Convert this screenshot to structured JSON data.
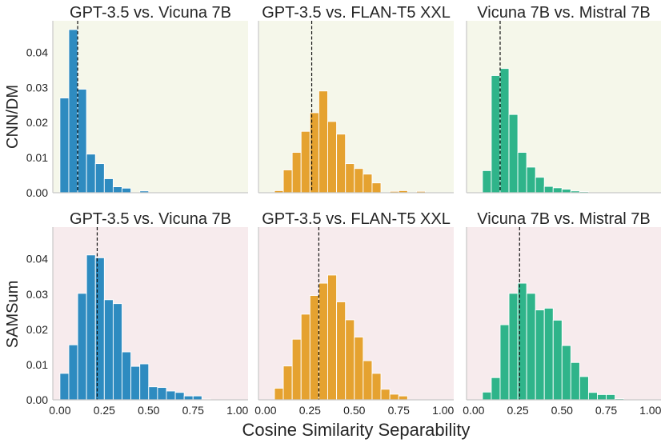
{
  "figure": {
    "xlabel": "Cosine Similarity Separability",
    "row_labels": [
      "CNN/DM",
      "SAMSum"
    ],
    "row_backgrounds": [
      "#f5f7ea",
      "#f7ebed"
    ],
    "xticks": [
      0.0,
      0.25,
      0.5,
      0.75,
      1.0
    ],
    "xtick_labels": [
      "0.00",
      "0.25",
      "0.50",
      "0.75",
      "1.00"
    ],
    "xlim": [
      -0.04,
      1.06
    ],
    "yticks": [
      0.0,
      0.01,
      0.02,
      0.03,
      0.04
    ],
    "ytick_labels": [
      "0.00",
      "0.01",
      "0.02",
      "0.03",
      "0.04"
    ],
    "ylim": [
      0,
      0.049
    ],
    "bin_width": 0.05,
    "bin_start": 0.0,
    "series_colors": {
      "GPT-3.5 vs. Vicuna 7B": "#2e8bc0",
      "GPT-3.5 vs. FLAN-T5 XXL": "#e5a230",
      "Vicuna 7B vs. Mistral 7B": "#2fb48a"
    }
  },
  "chart_data": [
    {
      "type": "bar",
      "row": 0,
      "col": 0,
      "title": "GPT-3.5 vs. Vicuna 7B",
      "dataset": "CNN/DM",
      "ylabel": "CNN/DM",
      "xlabel": "",
      "mean_line": 0.1,
      "values": [
        0.027,
        0.0465,
        0.0295,
        0.011,
        0.0083,
        0.004,
        0.0017,
        0.0013,
        0.0,
        0.0005,
        0.0,
        0.0,
        0.0,
        0.0,
        0.0,
        0.0,
        0.0,
        0.0,
        0.0,
        0.0
      ]
    },
    {
      "type": "bar",
      "row": 0,
      "col": 1,
      "title": "GPT-3.5 vs. FLAN-T5 XXL",
      "dataset": "CNN/DM",
      "ylabel": "",
      "xlabel": "",
      "mean_line": 0.26,
      "values": [
        0.0,
        0.0006,
        0.0065,
        0.0115,
        0.0175,
        0.0228,
        0.029,
        0.0203,
        0.0167,
        0.0083,
        0.0069,
        0.0053,
        0.0028,
        0.0,
        0.0004,
        0.0006,
        0.0,
        0.0004,
        0.0,
        0.0
      ]
    },
    {
      "type": "bar",
      "row": 0,
      "col": 2,
      "title": "Vicuna 7B vs. Mistral 7B",
      "dataset": "CNN/DM",
      "ylabel": "",
      "xlabel": "",
      "mean_line": 0.15,
      "values": [
        0.0,
        0.0063,
        0.0334,
        0.0354,
        0.0223,
        0.0115,
        0.0073,
        0.0044,
        0.0018,
        0.0014,
        0.001,
        0.0005,
        0.0003,
        0.0,
        0.0,
        0.0,
        0.0,
        0.0,
        0.0,
        0.0
      ]
    },
    {
      "type": "bar",
      "row": 1,
      "col": 0,
      "title": "GPT-3.5 vs. Vicuna 7B",
      "dataset": "SAMSum",
      "ylabel": "SAMSum",
      "xlabel": "",
      "mean_line": 0.21,
      "values": [
        0.0075,
        0.0156,
        0.0302,
        0.0411,
        0.0403,
        0.0284,
        0.0273,
        0.0136,
        0.0095,
        0.0102,
        0.0037,
        0.0035,
        0.0025,
        0.0021,
        0.0011,
        0.0011,
        0.0002,
        0.0,
        0.0,
        0.0
      ]
    },
    {
      "type": "bar",
      "row": 1,
      "col": 1,
      "title": "GPT-3.5 vs. FLAN-T5 XXL",
      "dataset": "SAMSum",
      "ylabel": "",
      "xlabel": "",
      "mean_line": 0.3,
      "values": [
        0.0,
        0.0033,
        0.0096,
        0.0172,
        0.0243,
        0.0296,
        0.0331,
        0.0354,
        0.0278,
        0.0227,
        0.0178,
        0.0111,
        0.0075,
        0.003,
        0.0016,
        0.0011,
        0.0,
        0.0,
        0.0,
        0.0
      ]
    },
    {
      "type": "bar",
      "row": 1,
      "col": 2,
      "title": "Vicuna 7B vs. Mistral 7B",
      "dataset": "SAMSum",
      "ylabel": "",
      "xlabel": "",
      "mean_line": 0.26,
      "values": [
        0.0,
        0.0022,
        0.0063,
        0.0213,
        0.0302,
        0.0331,
        0.0302,
        0.0255,
        0.026,
        0.0226,
        0.0154,
        0.0106,
        0.0066,
        0.0021,
        0.0015,
        0.0015,
        0.0003,
        0.0,
        0.0,
        0.0
      ]
    }
  ]
}
